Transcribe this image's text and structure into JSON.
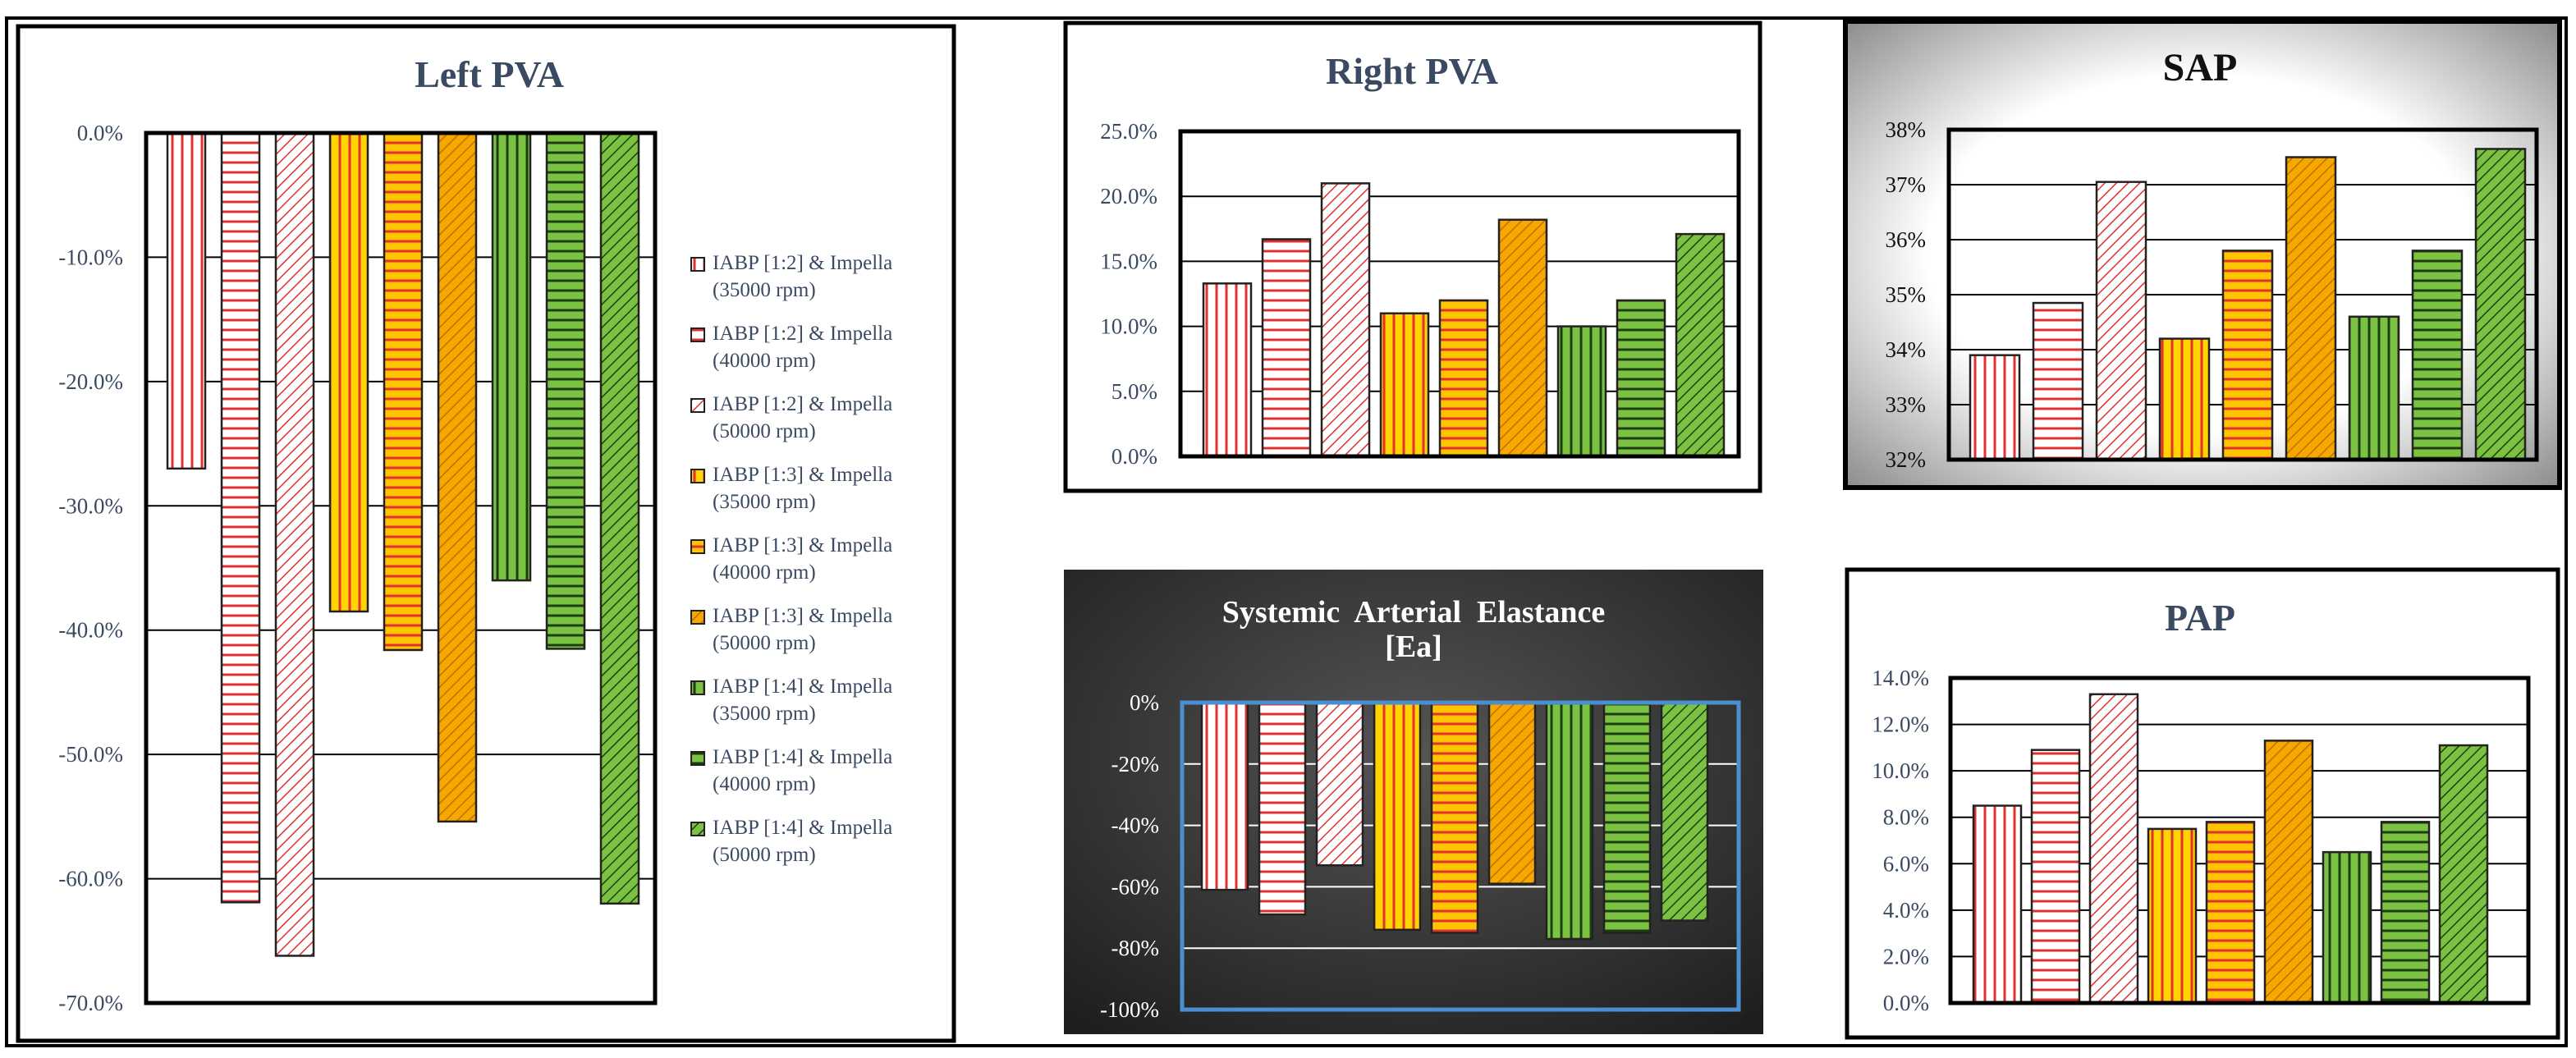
{
  "colors": {
    "red_stroke": "#e03030",
    "yellow_fill": "#ffd400",
    "orange_fill": "#f6a800",
    "green_fill": "#7cc242",
    "dark_stroke": "#222222",
    "title_color": "#3b4a63",
    "axis_text": "#3b4a63",
    "panel_dark": "#3a3a3a",
    "ea_axis_blue": "#4a90d0"
  },
  "legend": {
    "entries": [
      {
        "line1": "IABP [1:2] & Impella",
        "line2": "(35000 rpm)"
      },
      {
        "line1": "IABP [1:2] & Impella",
        "line2": "(40000 rpm)"
      },
      {
        "line1": "IABP [1:2] & Impella",
        "line2": "(50000 rpm)"
      },
      {
        "line1": "IABP [1:3] & Impella",
        "line2": "(35000 rpm)"
      },
      {
        "line1": "IABP [1:3] & Impella",
        "line2": "(40000 rpm)"
      },
      {
        "line1": "IABP [1:3] & Impella",
        "line2": "(50000 rpm)"
      },
      {
        "line1": "IABP [1:4] & Impella",
        "line2": "(35000 rpm)"
      },
      {
        "line1": "IABP [1:4] & Impella",
        "line2": "(40000 rpm)"
      },
      {
        "line1": "IABP [1:4] & Impella",
        "line2": "(50000 rpm)"
      }
    ]
  },
  "chart_data": [
    {
      "id": "left_pva",
      "type": "bar",
      "title": "Left PVA",
      "categories": [
        "IABP [1:2] & Impella (35000 rpm)",
        "IABP [1:2] & Impella (40000 rpm)",
        "IABP [1:2] & Impella (50000 rpm)",
        "IABP [1:3] & Impella (35000 rpm)",
        "IABP [1:3] & Impella (40000 rpm)",
        "IABP [1:3] & Impella (50000 rpm)",
        "IABP [1:4] & Impella (35000 rpm)",
        "IABP [1:4] & Impella (40000 rpm)",
        "IABP [1:4] & Impella (50000 rpm)"
      ],
      "values": [
        -27.0,
        -61.9,
        -66.2,
        -38.5,
        -41.6,
        -55.4,
        -36.0,
        -41.5,
        -62.0
      ],
      "ylim": [
        -70,
        0
      ],
      "ticks": [
        "0.0%",
        "-10.0%",
        "-20.0%",
        "-30.0%",
        "-40.0%",
        "-50.0%",
        "-60.0%",
        "-70.0%"
      ],
      "xlabel": "",
      "ylabel": ""
    },
    {
      "id": "right_pva",
      "type": "bar",
      "title": "Right PVA",
      "values": [
        13.3,
        16.7,
        21.0,
        11.0,
        12.0,
        18.2,
        10.0,
        12.0,
        17.1
      ],
      "ylim": [
        0,
        25
      ],
      "ticks": [
        "0.0%",
        "5.0%",
        "10.0%",
        "15.0%",
        "20.0%",
        "25.0%"
      ]
    },
    {
      "id": "sap",
      "type": "bar",
      "title": "SAP",
      "values": [
        33.9,
        34.85,
        37.05,
        34.2,
        35.8,
        37.5,
        34.6,
        35.8,
        37.65
      ],
      "ylim": [
        32,
        38
      ],
      "ticks": [
        "32%",
        "33%",
        "34%",
        "35%",
        "36%",
        "37%",
        "38%"
      ]
    },
    {
      "id": "ea",
      "type": "bar",
      "title": "Systemic  Arterial  Elastance",
      "title2": "[Ea]",
      "values": [
        -61.0,
        -69.0,
        -53.0,
        -74.0,
        -75.0,
        -59.0,
        -77.0,
        -75.0,
        -71.0
      ],
      "ylim": [
        -100,
        0
      ],
      "ticks": [
        "0%",
        "-20%",
        "-40%",
        "-60%",
        "-80%",
        "-100%"
      ]
    },
    {
      "id": "pap",
      "type": "bar",
      "title": "PAP",
      "values": [
        8.5,
        10.9,
        13.3,
        7.5,
        7.8,
        11.3,
        6.5,
        7.8,
        11.1
      ],
      "ylim": [
        0,
        14
      ],
      "ticks": [
        "0.0%",
        "2.0%",
        "4.0%",
        "6.0%",
        "8.0%",
        "10.0%",
        "12.0%",
        "14.0%"
      ]
    }
  ]
}
